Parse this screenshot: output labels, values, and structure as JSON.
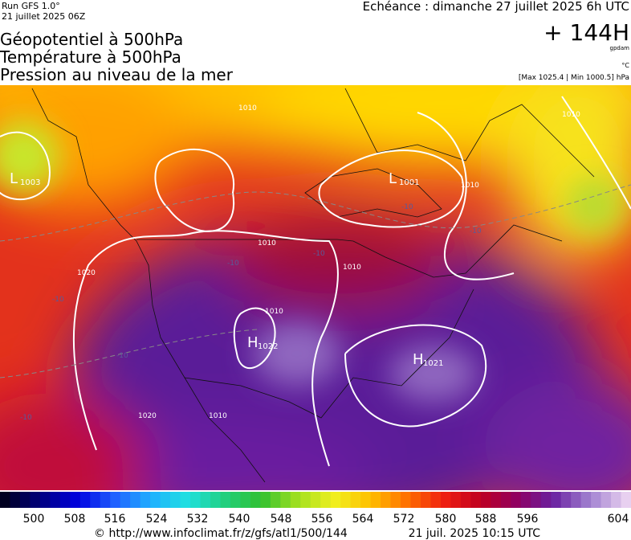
{
  "header": {
    "run": "Run GFS 1.0°",
    "run_date": "21 juillet 2025 06Z",
    "valid": "Echéance : dimanche 27 juillet 2025 6h UTC",
    "lead": "+ 144H",
    "unit_geo": "gpdam",
    "unit_temp": "°C",
    "pressure_range": "[Max 1025.4 | Min 1000.5] hPa",
    "title_lines": [
      "Géopotentiel à 500hPa",
      "Température à 500hPa",
      "Pression au niveau de la mer"
    ]
  },
  "map": {
    "centers": [
      {
        "kind": "L",
        "value": 1003
      },
      {
        "kind": "L",
        "value": 1001
      },
      {
        "kind": "H",
        "value": 1022
      },
      {
        "kind": "H",
        "value": 1021
      }
    ],
    "isobar_labels": [
      1010,
      1010,
      1010,
      1010,
      1020,
      1010,
      1020,
      1010,
      1010
    ],
    "temp_labels": [
      -10,
      -10,
      -10,
      -10,
      -10,
      -10,
      -10
    ]
  },
  "colorbar": {
    "labels": [
      500,
      508,
      516,
      524,
      532,
      540,
      548,
      556,
      564,
      572,
      580,
      588,
      596,
      604
    ]
  },
  "footer": {
    "url": "© http://www.infoclimat.fr/z/gfs/atl1/500/144",
    "generated": "21 juil. 2025 10:15 UTC"
  }
}
